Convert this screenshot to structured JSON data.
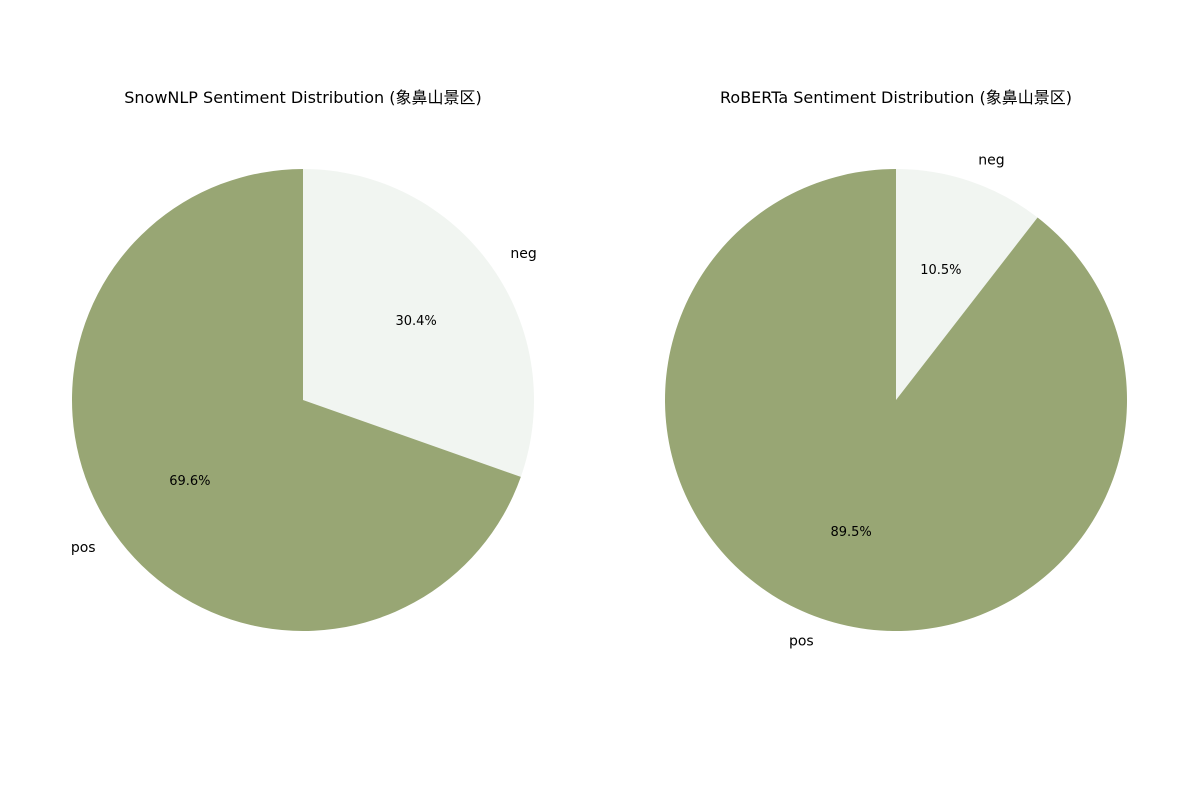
{
  "colors": {
    "background": "#ffffff",
    "pos": "#98a674",
    "neg": "#f1f5f1"
  },
  "chart_data": [
    {
      "type": "pie",
      "title": "SnowNLP Sentiment Distribution (象鼻山景区)",
      "start_angle_deg": 90,
      "direction": "clockwise",
      "slices": [
        {
          "label": "neg",
          "value": 30.4,
          "pct_label": "30.4%",
          "color": "#f1f5f1"
        },
        {
          "label": "pos",
          "value": 69.6,
          "pct_label": "69.6%",
          "color": "#98a674"
        }
      ]
    },
    {
      "type": "pie",
      "title": "RoBERTa Sentiment Distribution (象鼻山景区)",
      "start_angle_deg": 90,
      "direction": "clockwise",
      "slices": [
        {
          "label": "neg",
          "value": 10.5,
          "pct_label": "10.5%",
          "color": "#f1f5f1"
        },
        {
          "label": "pos",
          "value": 89.5,
          "pct_label": "89.5%",
          "color": "#98a674"
        }
      ]
    }
  ]
}
